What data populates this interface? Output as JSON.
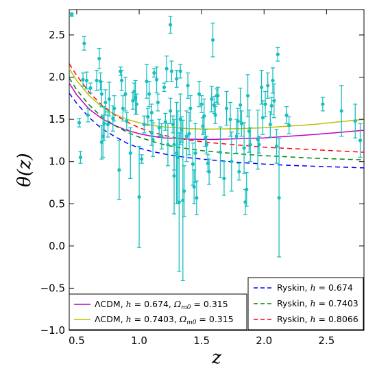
{
  "chart_data": {
    "type": "scatter",
    "xlabel": "z",
    "ylabel": "θ(z)",
    "xlim": [
      0.44,
      2.8
    ],
    "ylim": [
      -1.0,
      2.8
    ],
    "x_ticks": [
      "0.5",
      "1.0",
      "1.5",
      "2.0",
      "2.5"
    ],
    "y_ticks": [
      "−1.0",
      "−0.5",
      "0.0",
      "0.5",
      "1.0",
      "1.5",
      "2.0",
      "2.5"
    ],
    "grid": false,
    "colors": {
      "data": "#17bfbf",
      "lcdm_674": "#bf00bf",
      "lcdm_7403": "#bfbf00",
      "ryskin_674": "#0000ff",
      "ryskin_7403": "#008000",
      "ryskin_8066": "#ff0000"
    },
    "data_points": [
      [
        0.46,
        2.74,
        0.02
      ],
      [
        0.52,
        1.46,
        0.05
      ],
      [
        0.53,
        1.05,
        0.07
      ],
      [
        0.55,
        1.97,
        0.08
      ],
      [
        0.56,
        2.4,
        0.08
      ],
      [
        0.58,
        1.96,
        0.1
      ],
      [
        0.59,
        1.55,
        0.08
      ],
      [
        0.61,
        1.87,
        0.06
      ],
      [
        0.66,
        1.96,
        0.12
      ],
      [
        0.68,
        2.22,
        0.12
      ],
      [
        0.69,
        1.95,
        0.1
      ],
      [
        0.7,
        1.8,
        0.15
      ],
      [
        0.7,
        1.23,
        0.2
      ],
      [
        0.71,
        1.3,
        0.25
      ],
      [
        0.72,
        1.45,
        0.2
      ],
      [
        0.73,
        1.7,
        0.15
      ],
      [
        0.75,
        1.44,
        0.15
      ],
      [
        0.76,
        1.74,
        0.2
      ],
      [
        0.79,
        1.51,
        0.15
      ],
      [
        0.8,
        1.63,
        0.15
      ],
      [
        0.84,
        0.9,
        0.35
      ],
      [
        0.85,
        2.07,
        0.05
      ],
      [
        0.86,
        1.96,
        0.12
      ],
      [
        0.87,
        1.63,
        0.15
      ],
      [
        0.89,
        1.8,
        0.2
      ],
      [
        0.9,
        1.48,
        0.1
      ],
      [
        0.93,
        1.1,
        0.3
      ],
      [
        0.95,
        1.72,
        0.1
      ],
      [
        0.96,
        1.83,
        0.1
      ],
      [
        0.97,
        1.76,
        0.2
      ],
      [
        0.98,
        1.68,
        0.12
      ],
      [
        1.0,
        0.58,
        0.6
      ],
      [
        1.02,
        1.03,
        0.05
      ],
      [
        1.04,
        1.44,
        0.1
      ],
      [
        1.06,
        1.95,
        0.2
      ],
      [
        1.07,
        1.53,
        0.1
      ],
      [
        1.08,
        1.8,
        0.15
      ],
      [
        1.1,
        1.58,
        0.1
      ],
      [
        1.1,
        1.34,
        0.15
      ],
      [
        1.11,
        1.26,
        0.2
      ],
      [
        1.12,
        2.05,
        0.05
      ],
      [
        1.14,
        1.97,
        0.15
      ],
      [
        1.15,
        1.7,
        0.1
      ],
      [
        1.16,
        1.4,
        0.1
      ],
      [
        1.18,
        1.3,
        0.15
      ],
      [
        1.2,
        1.88,
        0.05
      ],
      [
        1.21,
        1.47,
        0.1
      ],
      [
        1.22,
        2.1,
        0.15
      ],
      [
        1.23,
        1.2,
        0.25
      ],
      [
        1.25,
        2.62,
        0.1
      ],
      [
        1.25,
        1.6,
        0.15
      ],
      [
        1.26,
        2.07,
        0.12
      ],
      [
        1.27,
        1.44,
        0.1
      ],
      [
        1.28,
        1.2,
        0.3
      ],
      [
        1.28,
        0.83,
        0.45
      ],
      [
        1.3,
        1.98,
        0.1
      ],
      [
        1.3,
        1.1,
        0.6
      ],
      [
        1.31,
        1.05,
        0.55
      ],
      [
        1.32,
        0.52,
        0.82
      ],
      [
        1.33,
        1.5,
        0.3
      ],
      [
        1.33,
        2.07,
        0.08
      ],
      [
        1.34,
        1.38,
        0.15
      ],
      [
        1.35,
        0.54,
        0.95
      ],
      [
        1.36,
        0.65,
        0.3
      ],
      [
        1.38,
        1.3,
        0.3
      ],
      [
        1.39,
        1.9,
        0.15
      ],
      [
        1.4,
        1.33,
        0.25
      ],
      [
        1.41,
        1.63,
        0.15
      ],
      [
        1.43,
        0.97,
        0.25
      ],
      [
        1.44,
        0.7,
        0.2
      ],
      [
        1.45,
        1.1,
        0.35
      ],
      [
        1.46,
        0.57,
        0.2
      ],
      [
        1.48,
        1.8,
        0.15
      ],
      [
        1.5,
        1.68,
        0.1
      ],
      [
        1.51,
        1.42,
        0.1
      ],
      [
        1.52,
        1.54,
        0.2
      ],
      [
        1.53,
        1.28,
        0.1
      ],
      [
        1.54,
        1.2,
        0.1
      ],
      [
        1.55,
        0.98,
        0.1
      ],
      [
        1.56,
        0.88,
        0.15
      ],
      [
        1.58,
        1.74,
        0.15
      ],
      [
        1.59,
        2.44,
        0.2
      ],
      [
        1.6,
        1.67,
        0.1
      ],
      [
        1.61,
        1.55,
        0.1
      ],
      [
        1.62,
        1.78,
        0.08
      ],
      [
        1.63,
        1.78,
        0.1
      ],
      [
        1.65,
        1.11,
        0.3
      ],
      [
        1.68,
        0.8,
        0.2
      ],
      [
        1.7,
        1.63,
        0.2
      ],
      [
        1.73,
        1.5,
        0.2
      ],
      [
        1.74,
        1.0,
        0.35
      ],
      [
        1.78,
        1.3,
        0.2
      ],
      [
        1.79,
        1.48,
        0.15
      ],
      [
        1.8,
        0.88,
        0.1
      ],
      [
        1.81,
        1.67,
        0.2
      ],
      [
        1.82,
        1.45,
        0.15
      ],
      [
        1.84,
        1.16,
        0.3
      ],
      [
        1.85,
        0.52,
        0.15
      ],
      [
        1.86,
        0.67,
        0.2
      ],
      [
        1.87,
        1.78,
        0.25
      ],
      [
        1.88,
        1.36,
        0.25
      ],
      [
        1.89,
        1.2,
        0.2
      ],
      [
        1.95,
        1.26,
        0.35
      ],
      [
        1.96,
        1.2,
        0.1
      ],
      [
        1.98,
        1.88,
        0.2
      ],
      [
        1.99,
        1.52,
        0.2
      ],
      [
        2.01,
        1.68,
        0.15
      ],
      [
        2.03,
        1.9,
        0.15
      ],
      [
        2.05,
        1.44,
        0.15
      ],
      [
        2.06,
        1.66,
        0.1
      ],
      [
        2.07,
        1.96,
        0.15
      ],
      [
        2.08,
        1.72,
        0.2
      ],
      [
        2.1,
        1.18,
        0.2
      ],
      [
        2.11,
        2.27,
        0.08
      ],
      [
        2.12,
        0.57,
        0.7
      ],
      [
        2.18,
        1.55,
        0.1
      ],
      [
        2.2,
        1.43,
        0.1
      ],
      [
        2.47,
        1.68,
        0.08
      ],
      [
        2.62,
        1.6,
        0.3
      ],
      [
        2.73,
        1.48,
        0.2
      ],
      [
        2.77,
        1.25,
        0.2
      ]
    ],
    "series": [
      {
        "key": "lcdm_674",
        "dashed": false,
        "x": [
          0.44,
          0.5,
          0.6,
          0.7,
          0.8,
          0.9,
          1.0,
          1.1,
          1.2,
          1.3,
          1.4,
          1.5,
          1.6,
          1.8,
          2.0,
          2.2,
          2.4,
          2.6,
          2.8
        ],
        "y": [
          1.93,
          1.79,
          1.62,
          1.51,
          1.43,
          1.37,
          1.33,
          1.3,
          1.28,
          1.275,
          1.265,
          1.262,
          1.262,
          1.27,
          1.28,
          1.3,
          1.32,
          1.345,
          1.37
        ]
      },
      {
        "key": "lcdm_7403",
        "dashed": false,
        "x": [
          0.44,
          0.5,
          0.6,
          0.7,
          0.8,
          0.9,
          1.0,
          1.1,
          1.2,
          1.3,
          1.4,
          1.5,
          1.6,
          1.8,
          2.0,
          2.2,
          2.4,
          2.6,
          2.8
        ],
        "y": [
          2.1,
          1.96,
          1.78,
          1.65,
          1.56,
          1.5,
          1.46,
          1.43,
          1.41,
          1.4,
          1.39,
          1.385,
          1.385,
          1.39,
          1.4,
          1.42,
          1.44,
          1.47,
          1.5
        ]
      },
      {
        "key": "ryskin_674",
        "dashed": true,
        "x": [
          0.44,
          0.5,
          0.6,
          0.7,
          0.8,
          0.9,
          1.0,
          1.1,
          1.2,
          1.3,
          1.4,
          1.5,
          1.6,
          1.8,
          2.0,
          2.2,
          2.4,
          2.6,
          2.8
        ],
        "y": [
          1.81,
          1.69,
          1.52,
          1.39,
          1.3,
          1.22,
          1.16,
          1.12,
          1.09,
          1.065,
          1.045,
          1.03,
          1.015,
          0.99,
          0.97,
          0.955,
          0.945,
          0.935,
          0.925
        ]
      },
      {
        "key": "ryskin_7403",
        "dashed": true,
        "x": [
          0.44,
          0.5,
          0.6,
          0.7,
          0.8,
          0.9,
          1.0,
          1.1,
          1.2,
          1.3,
          1.4,
          1.5,
          1.6,
          1.8,
          2.0,
          2.2,
          2.4,
          2.6,
          2.8
        ],
        "y": [
          1.99,
          1.85,
          1.67,
          1.53,
          1.43,
          1.35,
          1.29,
          1.24,
          1.2,
          1.17,
          1.15,
          1.13,
          1.115,
          1.09,
          1.07,
          1.055,
          1.04,
          1.03,
          1.02
        ]
      },
      {
        "key": "ryskin_8066",
        "dashed": true,
        "x": [
          0.44,
          0.5,
          0.6,
          0.7,
          0.8,
          0.9,
          1.0,
          1.1,
          1.2,
          1.3,
          1.4,
          1.5,
          1.6,
          1.8,
          2.0,
          2.2,
          2.4,
          2.6,
          2.8
        ],
        "y": [
          2.16,
          2.02,
          1.82,
          1.67,
          1.56,
          1.47,
          1.4,
          1.35,
          1.31,
          1.28,
          1.255,
          1.235,
          1.22,
          1.195,
          1.17,
          1.155,
          1.14,
          1.125,
          1.11
        ]
      }
    ],
    "legend_left": {
      "placement": "lower left",
      "items": [
        {
          "key": "lcdm_674",
          "text": "ΛCDM, h = 0.674, Ω_m0 = 0.315"
        },
        {
          "key": "lcdm_7403",
          "text": "ΛCDM, h = 0.7403, Ω_m0 = 0.315"
        }
      ]
    },
    "legend_right": {
      "placement": "lower right",
      "items": [
        {
          "key": "ryskin_674",
          "text": "Ryskin, h = 0.674"
        },
        {
          "key": "ryskin_7403",
          "text": "Ryskin, h = 0.7403"
        },
        {
          "key": "ryskin_8066",
          "text": "Ryskin, h = 0.8066"
        }
      ]
    }
  }
}
